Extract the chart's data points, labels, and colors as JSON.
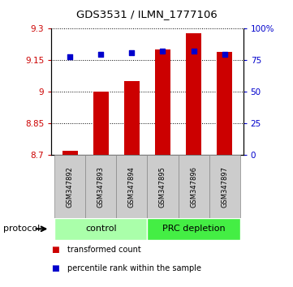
{
  "title": "GDS3531 / ILMN_1777106",
  "samples": [
    "GSM347892",
    "GSM347893",
    "GSM347894",
    "GSM347895",
    "GSM347896",
    "GSM347897"
  ],
  "transformed_counts": [
    8.72,
    9.0,
    9.05,
    9.2,
    9.28,
    9.19
  ],
  "percentile_ranks": [
    78,
    80,
    81,
    82,
    82,
    80
  ],
  "bar_bottom": 8.7,
  "ylim_left": [
    8.7,
    9.3
  ],
  "ylim_right": [
    0,
    100
  ],
  "yticks_left": [
    8.7,
    8.85,
    9.0,
    9.15,
    9.3
  ],
  "yticks_right": [
    0,
    25,
    50,
    75,
    100
  ],
  "ytick_labels_left": [
    "8.7",
    "8.85",
    "9",
    "9.15",
    "9.3"
  ],
  "ytick_labels_right": [
    "0",
    "25",
    "50",
    "75",
    "100%"
  ],
  "group_labels": [
    "control",
    "PRC depletion"
  ],
  "group_ranges": [
    [
      0,
      2
    ],
    [
      3,
      5
    ]
  ],
  "group_colors": [
    "#aaffaa",
    "#44ee44"
  ],
  "bar_color": "#CC0000",
  "dot_color": "#0000CC",
  "background_color": "#ffffff",
  "left_axis_color": "#CC0000",
  "right_axis_color": "#0000CC",
  "bar_width": 0.5,
  "protocol_label": "protocol",
  "legend_red_label": "transformed count",
  "legend_blue_label": "percentile rank within the sample",
  "sample_band_color": "#cccccc",
  "sample_band_edge": "#888888"
}
